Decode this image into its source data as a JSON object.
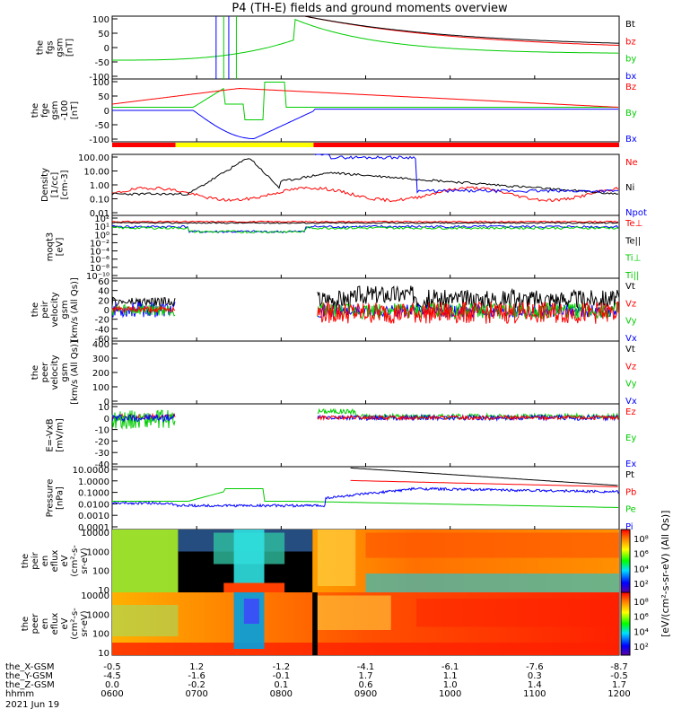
{
  "chart_data": {
    "type": "line",
    "title": "P4 (TH-E) fields and ground moments overview",
    "date": "2021 Jun 19",
    "xlabel": "hhmm",
    "x_ticks": [
      "0600",
      "0700",
      "0800",
      "0900",
      "1000",
      "1100",
      "1200"
    ],
    "orbit_rows": [
      {
        "name": "the_X-GSM",
        "values": [
          "-0.5",
          "1.2",
          "-1.2",
          "-4.1",
          "-6.1",
          "-7.6",
          "-8.7"
        ]
      },
      {
        "name": "the_Y-GSM",
        "values": [
          "-4.5",
          "-1.6",
          "-0.1",
          "1.7",
          "1.1",
          "0.3",
          "-0.5"
        ]
      },
      {
        "name": "the_Z-GSM",
        "values": [
          "0.0",
          "-0.2",
          "0.1",
          "0.6",
          "1.0",
          "1.4",
          "1.7"
        ]
      }
    ],
    "status_bar": [
      {
        "from": "0600",
        "to": "0645",
        "color": "#ff0000"
      },
      {
        "from": "0645",
        "to": "0823",
        "color": "#ffff00"
      },
      {
        "from": "0823",
        "to": "1200",
        "color": "#ff0000"
      }
    ],
    "panels": [
      {
        "id": "fgs",
        "ylabel": [
          "the",
          "fgs",
          "gsm",
          "[nT]"
        ],
        "yticks": [
          "100",
          "50",
          "0",
          "-50",
          "-100"
        ],
        "ylim": [
          -100,
          100
        ],
        "legend": [
          {
            "label": "Bt",
            "color": "#000000"
          },
          {
            "label": "bz",
            "color": "#ff0000"
          },
          {
            "label": "by",
            "color": "#00cc00"
          },
          {
            "label": "bx",
            "color": "#0000ff"
          }
        ]
      },
      {
        "id": "fge",
        "ylabel": [
          "the",
          "fge",
          "gsm",
          "-100",
          "[nT]"
        ],
        "yticks": [
          "100",
          "50",
          "0",
          "-50",
          "-100"
        ],
        "ylim": [
          -120,
          110
        ],
        "legend": [
          {
            "label": "Bz",
            "color": "#ff0000"
          },
          {
            "label": "By",
            "color": "#00cc00"
          },
          {
            "label": "Bx",
            "color": "#0000ff"
          }
        ]
      },
      {
        "id": "density",
        "ylabel": [
          "Density",
          "[1/cc]",
          "[cm-3]"
        ],
        "yticks": [
          "100.00",
          "10.00",
          "1.00",
          "0.10",
          "0.01"
        ],
        "log": true,
        "legend": [
          {
            "label": "Ne",
            "color": "#ff0000"
          },
          {
            "label": "Ni",
            "color": "#000000"
          },
          {
            "label": "Npot",
            "color": "#0000ff"
          }
        ]
      },
      {
        "id": "temp",
        "ylabel": [
          "moqt3",
          "[eV]"
        ],
        "yticks": [
          "10²",
          "10¹",
          "10⁰",
          "10⁻²",
          "10⁻⁴",
          "10⁻⁶",
          "10⁻⁸",
          "10⁻¹⁰"
        ],
        "log": true,
        "legend": [
          {
            "label": "Te⊥",
            "color": "#ff0000"
          },
          {
            "label": "Te||",
            "color": "#000000"
          },
          {
            "label": "Ti⊥",
            "color": "#00cc00"
          },
          {
            "label": "Ti||",
            "color": "#00cc00"
          }
        ]
      },
      {
        "id": "peir_vel",
        "ylabel": [
          "the",
          "peir",
          "velocity",
          "gsm",
          "[km/s (All Qs)]"
        ],
        "yticks": [
          "60",
          "40",
          "20",
          "0",
          "-20",
          "-40",
          "-60"
        ],
        "ylim": [
          -60,
          60
        ],
        "legend": [
          {
            "label": "Vt",
            "color": "#000000"
          },
          {
            "label": "Vz",
            "color": "#ff0000"
          },
          {
            "label": "Vy",
            "color": "#00cc00"
          },
          {
            "label": "Vx",
            "color": "#0000ff"
          }
        ]
      },
      {
        "id": "peer_vel",
        "ylabel": [
          "the",
          "peer",
          "velocity",
          "gsm",
          "[km/s (All Qs)]"
        ],
        "yticks": [
          "400",
          "300",
          "200",
          "100",
          "0"
        ],
        "ylim": [
          0,
          400
        ],
        "legend": [
          {
            "label": "Vt",
            "color": "#000000"
          },
          {
            "label": "Vz",
            "color": "#ff0000"
          },
          {
            "label": "Vy",
            "color": "#00cc00"
          },
          {
            "label": "Vx",
            "color": "#0000ff"
          }
        ]
      },
      {
        "id": "efield",
        "ylabel": [
          "E=-VxB",
          "[mV/m]"
        ],
        "yticks": [
          "10",
          "0",
          "-10",
          "-20",
          "-30",
          "-40"
        ],
        "ylim": [
          -40,
          12
        ],
        "legend": [
          {
            "label": "Ez",
            "color": "#ff0000"
          },
          {
            "label": "Ey",
            "color": "#00cc00"
          },
          {
            "label": "Ex",
            "color": "#0000ff"
          }
        ]
      },
      {
        "id": "pressure",
        "ylabel": [
          "Pressure",
          "[nPa]"
        ],
        "yticks": [
          "10.0000",
          "1.0000",
          "0.1000",
          "0.0100",
          "0.0010",
          "0.0001"
        ],
        "log": true,
        "legend": [
          {
            "label": "Pt",
            "color": "#000000"
          },
          {
            "label": "Pb",
            "color": "#ff0000"
          },
          {
            "label": "Pe",
            "color": "#00cc00"
          },
          {
            "label": "Pi",
            "color": "#0000ff"
          }
        ]
      },
      {
        "id": "peir_eflux",
        "ylabel": [
          "the",
          "peir",
          "en",
          "eflux",
          "eV",
          "(cm²-s-",
          "sr-eV)"
        ],
        "yticks": [
          "10000",
          "1000",
          "100",
          "10"
        ],
        "colorbar": {
          "ticks": [
            "10⁸",
            "10⁶",
            "10⁴",
            "10²"
          ],
          "label": "[eV/(cm²-s-sr-eV) (All Qs)]"
        }
      },
      {
        "id": "peer_eflux",
        "ylabel": [
          "the",
          "peer",
          "en",
          "eflux",
          "eV",
          "(cm²-s-",
          "sr-eV)"
        ],
        "yticks": [
          "10000",
          "1000",
          "100",
          "10"
        ],
        "colorbar": {
          "ticks": [
            "10⁸",
            "10⁶",
            "10⁴",
            "10²"
          ],
          "label": "[eV/(cm²-s-sr-eV) (All Qs)]"
        }
      }
    ]
  }
}
